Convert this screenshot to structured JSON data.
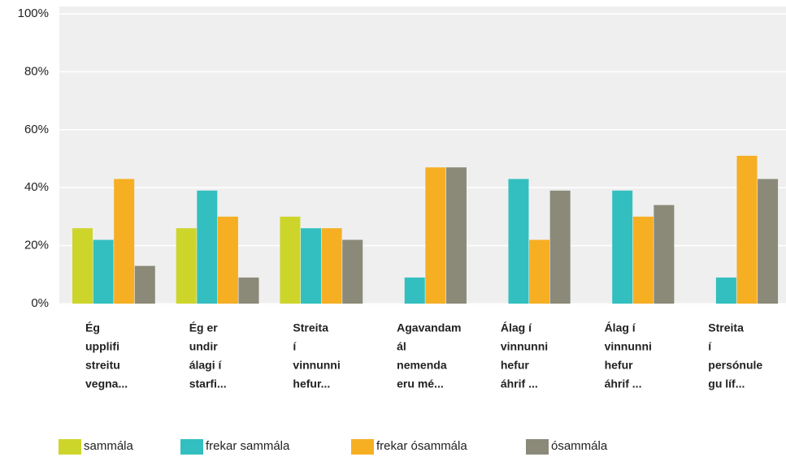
{
  "chart_data": {
    "type": "bar",
    "categories": [
      [
        "Ég",
        "upplifi",
        "streitu",
        "vegna..."
      ],
      [
        "Ég er",
        "undir",
        "álagi í",
        "starfi..."
      ],
      [
        "Streita",
        "í",
        "vinnunni",
        "hefur..."
      ],
      [
        "Agavandam",
        "ál",
        "nemenda",
        "eru mé..."
      ],
      [
        "Álag í",
        "vinnunni",
        "hefur",
        "áhrif ..."
      ],
      [
        "Álag í",
        "vinnunni",
        "hefur",
        "áhrif ..."
      ],
      [
        "Streita",
        "í",
        "persónule",
        "gu líf..."
      ]
    ],
    "series": [
      {
        "name": "sammála",
        "color": "#cdd52b",
        "values": [
          26,
          26,
          30,
          0,
          0,
          0,
          0
        ]
      },
      {
        "name": "frekar sammála",
        "color": "#33bfbf",
        "values": [
          22,
          39,
          26,
          9,
          43,
          39,
          9
        ]
      },
      {
        "name": "frekar ósammála",
        "color": "#f6ae22",
        "values": [
          43,
          30,
          26,
          47,
          22,
          30,
          51
        ]
      },
      {
        "name": "ósammála",
        "color": "#8b8a79",
        "values": [
          13,
          9,
          22,
          47,
          39,
          34,
          43
        ]
      }
    ],
    "ylim": [
      0,
      100
    ],
    "yticks": [
      {
        "value": 0,
        "label": "0%"
      },
      {
        "value": 20,
        "label": "20%"
      },
      {
        "value": 40,
        "label": "40%"
      },
      {
        "value": 60,
        "label": "60%"
      },
      {
        "value": 80,
        "label": "80%"
      },
      {
        "value": 100,
        "label": "100%"
      }
    ],
    "grid": true,
    "legend": "bottom"
  }
}
